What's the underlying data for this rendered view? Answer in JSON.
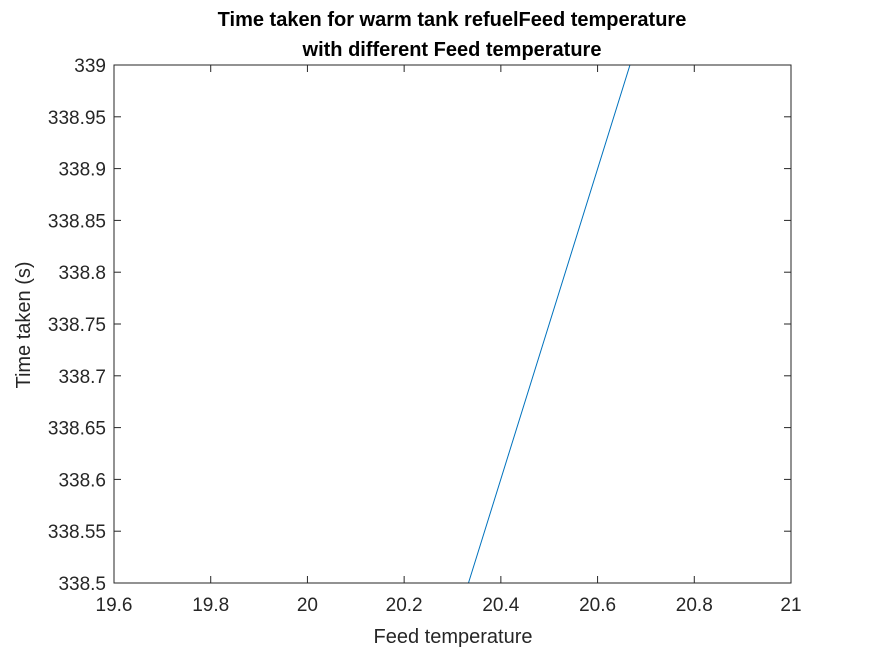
{
  "chart_data": {
    "type": "line",
    "title": [
      "Time taken for warm tank refuelFeed temperature",
      "with different Feed temperature"
    ],
    "xlabel": "Feed temperature",
    "ylabel": "Time taken (s)",
    "xlim": [
      19.6,
      21
    ],
    "ylim": [
      338.5,
      339
    ],
    "xticks": [
      19.6,
      19.8,
      20,
      20.2,
      20.4,
      20.6,
      20.8,
      21
    ],
    "xtick_labels": [
      "19.6",
      "19.8",
      "20",
      "20.2",
      "20.4",
      "20.6",
      "20.8",
      "21"
    ],
    "yticks": [
      338.5,
      338.55,
      338.6,
      338.65,
      338.7,
      338.75,
      338.8,
      338.85,
      338.9,
      338.95,
      339
    ],
    "ytick_labels": [
      "338.5",
      "338.55",
      "338.6",
      "338.65",
      "338.7",
      "338.75",
      "338.8",
      "338.85",
      "338.9",
      "338.95",
      "339"
    ],
    "grid": false,
    "series": [
      {
        "x": [
          19.667,
          20.333,
          20.667,
          21
        ],
        "y": [
          338.5,
          338.5,
          339,
          339
        ],
        "color": "#0072BD"
      }
    ]
  }
}
